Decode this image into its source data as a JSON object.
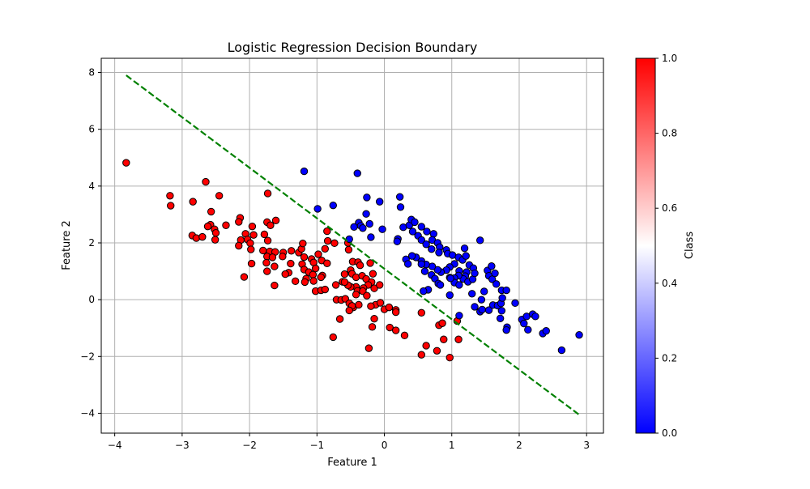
{
  "chart_data": {
    "type": "scatter",
    "title": "Logistic Regression Decision Boundary",
    "xlabel": "Feature 1",
    "ylabel": "Feature 2",
    "xlim": [
      -4.2,
      3.25
    ],
    "ylim": [
      -4.7,
      8.5
    ],
    "xticks": [
      -4,
      -3,
      -2,
      -1,
      0,
      1,
      2,
      3
    ],
    "yticks": [
      -4,
      -2,
      0,
      2,
      4,
      6,
      8
    ],
    "grid": true,
    "colors": {
      "class_0": "#0000ff",
      "class_1": "#ff0000",
      "boundary": "#008000",
      "marker_edge": "#000000"
    },
    "boundary": {
      "name": "",
      "style": "dashed",
      "x": [
        -3.83,
        2.9
      ],
      "y": [
        7.9,
        -4.07
      ]
    },
    "colorbar": {
      "label": "Class",
      "range": [
        0,
        1
      ],
      "ticks": [
        "0.0",
        "0.2",
        "0.4",
        "0.6",
        "0.8",
        "1.0"
      ],
      "tick_values": [
        0,
        0.2,
        0.4,
        0.6,
        0.8,
        1.0
      ],
      "colormap": [
        "#0000ff",
        "#ffffff",
        "#ff0000"
      ]
    },
    "series": [
      {
        "class": 1,
        "points": [
          [
            -3.83,
            4.82
          ],
          [
            -3.18,
            3.66
          ],
          [
            -3.17,
            3.31
          ],
          [
            -2.65,
            4.15
          ],
          [
            -2.84,
            3.45
          ],
          [
            -2.45,
            3.66
          ],
          [
            -2.57,
            3.1
          ],
          [
            -2.58,
            2.64
          ],
          [
            -2.62,
            2.58
          ],
          [
            -2.52,
            2.48
          ],
          [
            -2.35,
            2.62
          ],
          [
            -2.5,
            2.35
          ],
          [
            -2.51,
            2.11
          ],
          [
            -2.85,
            2.26
          ],
          [
            -2.79,
            2.17
          ],
          [
            -2.7,
            2.21
          ],
          [
            -2.14,
            2.88
          ],
          [
            -2.16,
            2.74
          ],
          [
            -1.96,
            2.58
          ],
          [
            -2.06,
            2.32
          ],
          [
            -2.13,
            2.1
          ],
          [
            -2.03,
            2.12
          ],
          [
            -1.94,
            2.28
          ],
          [
            -1.99,
            1.99
          ],
          [
            -2.16,
            1.9
          ],
          [
            -1.98,
            1.77
          ],
          [
            -1.74,
            2.73
          ],
          [
            -1.69,
            2.62
          ],
          [
            -1.61,
            2.79
          ],
          [
            -1.78,
            2.3
          ],
          [
            -1.73,
            2.08
          ],
          [
            -1.8,
            1.73
          ],
          [
            -1.7,
            1.7
          ],
          [
            -1.62,
            1.68
          ],
          [
            -1.74,
            1.52
          ],
          [
            -1.66,
            1.49
          ],
          [
            -1.5,
            1.66
          ],
          [
            -1.38,
            1.72
          ],
          [
            -1.27,
            1.66
          ],
          [
            -1.23,
            1.79
          ],
          [
            -1.21,
            1.98
          ],
          [
            -1.51,
            1.52
          ],
          [
            -1.97,
            1.27
          ],
          [
            -1.75,
            1.3
          ],
          [
            -1.63,
            1.17
          ],
          [
            -1.39,
            1.27
          ],
          [
            -1.42,
            0.95
          ],
          [
            -1.47,
            0.9
          ],
          [
            -1.74,
            1.0
          ],
          [
            -1.32,
            0.65
          ],
          [
            -1.63,
            0.5
          ],
          [
            -2.08,
            0.8
          ],
          [
            -1.73,
            3.74
          ],
          [
            -1.19,
            1.5
          ],
          [
            -1.22,
            1.25
          ],
          [
            -1.08,
            1.43
          ],
          [
            -1.05,
            1.31
          ],
          [
            -0.98,
            1.6
          ],
          [
            -0.93,
            1.38
          ],
          [
            -0.85,
            1.28
          ],
          [
            -1.02,
            1.1
          ],
          [
            -1.19,
            1.06
          ],
          [
            -1.12,
            0.97
          ],
          [
            -1.06,
            0.88
          ],
          [
            -1.16,
            0.74
          ],
          [
            -1.05,
            0.66
          ],
          [
            -1.18,
            0.62
          ],
          [
            -0.92,
            0.85
          ],
          [
            -0.94,
            0.79
          ],
          [
            -1.02,
            0.3
          ],
          [
            -0.94,
            0.33
          ],
          [
            -0.88,
            0.36
          ],
          [
            -0.85,
            2.41
          ],
          [
            -0.84,
            2.07
          ],
          [
            -0.88,
            1.79
          ],
          [
            -0.74,
            1.99
          ],
          [
            -0.54,
            2.0
          ],
          [
            -0.53,
            1.76
          ],
          [
            -0.47,
            1.34
          ],
          [
            -0.39,
            1.32
          ],
          [
            -0.36,
            1.21
          ],
          [
            -0.5,
            1.04
          ],
          [
            -0.59,
            0.9
          ],
          [
            -0.48,
            0.91
          ],
          [
            -0.42,
            0.79
          ],
          [
            -0.33,
            0.84
          ],
          [
            -0.27,
            0.73
          ],
          [
            -0.19,
            0.62
          ],
          [
            -0.17,
            0.91
          ],
          [
            -0.21,
            1.29
          ],
          [
            -0.24,
            0.52
          ],
          [
            -0.15,
            0.4
          ],
          [
            -0.07,
            0.52
          ],
          [
            -0.31,
            0.41
          ],
          [
            -0.42,
            0.45
          ],
          [
            -0.4,
            0.31
          ],
          [
            -0.5,
            0.45
          ],
          [
            -0.54,
            0.51
          ],
          [
            -0.62,
            0.63
          ],
          [
            -0.72,
            0.52
          ],
          [
            -0.71,
            0.0
          ],
          [
            -0.64,
            -0.01
          ],
          [
            -0.58,
            0.03
          ],
          [
            -0.52,
            -0.13
          ],
          [
            -0.46,
            -0.27
          ],
          [
            -0.38,
            -0.18
          ],
          [
            -0.48,
            -0.22
          ],
          [
            -0.52,
            -0.38
          ],
          [
            -0.42,
            0.18
          ],
          [
            -0.32,
            0.3
          ],
          [
            -0.26,
            0.14
          ],
          [
            -0.13,
            -0.18
          ],
          [
            -0.2,
            -0.23
          ],
          [
            -0.15,
            -0.67
          ],
          [
            -0.06,
            -0.11
          ],
          [
            0.0,
            -0.34
          ],
          [
            0.07,
            -0.27
          ],
          [
            0.17,
            -0.36
          ],
          [
            0.17,
            -0.44
          ],
          [
            -0.59,
            0.62
          ],
          [
            -0.66,
            -0.68
          ],
          [
            -0.76,
            -1.32
          ],
          [
            -0.18,
            -0.96
          ],
          [
            -0.23,
            -1.71
          ],
          [
            0.08,
            -0.98
          ],
          [
            0.17,
            -1.08
          ],
          [
            0.3,
            -1.26
          ],
          [
            0.55,
            -0.46
          ],
          [
            0.55,
            -1.94
          ],
          [
            0.62,
            -1.62
          ],
          [
            0.78,
            -1.8
          ],
          [
            0.81,
            -0.9
          ],
          [
            0.86,
            -0.83
          ],
          [
            0.88,
            -1.4
          ],
          [
            0.97,
            -2.04
          ],
          [
            1.1,
            -1.4
          ],
          [
            1.08,
            -0.75
          ]
        ]
      },
      {
        "class": 0,
        "points": [
          [
            -1.19,
            4.52
          ],
          [
            -0.4,
            4.45
          ],
          [
            -0.99,
            3.2
          ],
          [
            -0.76,
            3.32
          ],
          [
            -0.26,
            3.6
          ],
          [
            -0.07,
            3.45
          ],
          [
            -0.27,
            3.02
          ],
          [
            -0.38,
            2.71
          ],
          [
            -0.35,
            2.6
          ],
          [
            -0.22,
            2.67
          ],
          [
            -0.32,
            2.52
          ],
          [
            -0.45,
            2.56
          ],
          [
            -0.03,
            2.48
          ],
          [
            -0.2,
            2.2
          ],
          [
            -0.52,
            2.13
          ],
          [
            0.23,
            3.62
          ],
          [
            0.24,
            3.26
          ],
          [
            0.2,
            2.14
          ],
          [
            0.19,
            2.05
          ],
          [
            0.28,
            2.55
          ],
          [
            0.37,
            2.62
          ],
          [
            0.4,
            2.82
          ],
          [
            0.45,
            2.73
          ],
          [
            0.55,
            2.57
          ],
          [
            0.63,
            2.4
          ],
          [
            0.73,
            2.32
          ],
          [
            0.42,
            2.4
          ],
          [
            0.5,
            2.25
          ],
          [
            0.55,
            2.1
          ],
          [
            0.62,
            1.95
          ],
          [
            0.71,
            2.1
          ],
          [
            0.79,
            2.0
          ],
          [
            0.82,
            1.85
          ],
          [
            0.7,
            1.78
          ],
          [
            0.81,
            1.66
          ],
          [
            0.92,
            1.75
          ],
          [
            0.94,
            1.62
          ],
          [
            1.01,
            1.57
          ],
          [
            1.1,
            1.49
          ],
          [
            1.16,
            1.4
          ],
          [
            1.19,
            1.81
          ],
          [
            1.21,
            1.54
          ],
          [
            1.26,
            1.22
          ],
          [
            1.32,
            1.11
          ],
          [
            1.22,
            0.97
          ],
          [
            1.11,
            1.01
          ],
          [
            1.04,
            1.26
          ],
          [
            0.97,
            1.15
          ],
          [
            0.92,
            1.04
          ],
          [
            0.84,
            0.97
          ],
          [
            0.79,
            1.05
          ],
          [
            0.71,
            1.17
          ],
          [
            0.62,
            1.24
          ],
          [
            0.55,
            1.36
          ],
          [
            0.47,
            1.49
          ],
          [
            0.41,
            1.54
          ],
          [
            0.32,
            1.42
          ],
          [
            0.35,
            1.26
          ],
          [
            0.55,
            1.25
          ],
          [
            0.6,
            1.0
          ],
          [
            0.7,
            0.87
          ],
          [
            0.75,
            0.74
          ],
          [
            0.8,
            0.57
          ],
          [
            0.83,
            0.52
          ],
          [
            0.65,
            0.35
          ],
          [
            0.97,
            0.78
          ],
          [
            0.97,
            0.16
          ],
          [
            1.2,
            0.83
          ],
          [
            1.17,
            0.73
          ],
          [
            1.24,
            0.63
          ],
          [
            1.31,
            0.72
          ],
          [
            1.34,
            0.93
          ],
          [
            1.1,
            0.85
          ],
          [
            1.04,
            0.76
          ],
          [
            1.04,
            0.6
          ],
          [
            1.11,
            0.52
          ],
          [
            1.42,
            2.09
          ],
          [
            1.53,
            1.03
          ],
          [
            1.59,
            1.18
          ],
          [
            1.55,
            0.84
          ],
          [
            1.6,
            0.72
          ],
          [
            1.66,
            0.55
          ],
          [
            1.64,
            0.93
          ],
          [
            1.48,
            0.29
          ],
          [
            1.44,
            0.0
          ],
          [
            1.34,
            -0.25
          ],
          [
            1.42,
            -0.42
          ],
          [
            1.45,
            -0.35
          ],
          [
            1.55,
            -0.37
          ],
          [
            1.61,
            -0.19
          ],
          [
            1.68,
            -0.21
          ],
          [
            1.73,
            -0.13
          ],
          [
            1.74,
            0.33
          ],
          [
            1.81,
            0.33
          ],
          [
            1.75,
            0.06
          ],
          [
            1.74,
            -0.39
          ],
          [
            1.72,
            -0.66
          ],
          [
            1.82,
            -0.97
          ],
          [
            1.81,
            -1.07
          ],
          [
            1.94,
            -0.12
          ],
          [
            2.04,
            -0.7
          ],
          [
            2.07,
            -0.84
          ],
          [
            2.11,
            -0.59
          ],
          [
            2.13,
            -1.06
          ],
          [
            2.2,
            -0.51
          ],
          [
            2.24,
            -0.59
          ],
          [
            2.35,
            -1.19
          ],
          [
            2.4,
            -1.1
          ],
          [
            2.63,
            -1.78
          ],
          [
            2.89,
            -1.24
          ],
          [
            1.3,
            0.21
          ],
          [
            1.11,
            -0.56
          ],
          [
            0.98,
            0.75
          ],
          [
            0.58,
            0.3
          ]
        ]
      }
    ]
  }
}
